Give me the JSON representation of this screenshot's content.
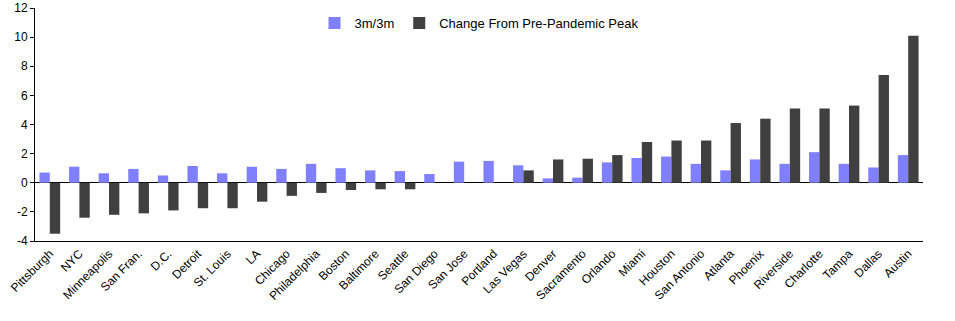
{
  "chart_data": {
    "type": "bar",
    "categories": [
      "Pittsburgh",
      "NYC",
      "Minneapolis",
      "San Fran.",
      "D.C.",
      "Detroit",
      "St. Louis",
      "LA",
      "Chicago",
      "Philadelphia",
      "Boston",
      "Baltimore",
      "Seattle",
      "San Diego",
      "San Jose",
      "Portland",
      "Las Vegas",
      "Denver",
      "Sacramento",
      "Orlando",
      "Miami",
      "Houston",
      "San Antonio",
      "Atlanta",
      "Phoenix",
      "Riverside",
      "Charlotte",
      "Tampa",
      "Dallas",
      "Austin"
    ],
    "series": [
      {
        "name": "3m/3m",
        "color": "#8080ff",
        "values": [
          0.7,
          1.1,
          0.65,
          0.95,
          0.5,
          1.15,
          0.65,
          1.1,
          0.95,
          1.3,
          1.0,
          0.85,
          0.8,
          0.6,
          1.45,
          1.5,
          1.2,
          0.3,
          0.35,
          1.4,
          1.7,
          1.8,
          1.3,
          0.85,
          1.6,
          1.3,
          2.1,
          1.3,
          1.05,
          1.9
        ]
      },
      {
        "name": "Change From Pre-Pandemic Peak",
        "color": "#404040",
        "values": [
          -3.5,
          -2.4,
          -2.2,
          -2.1,
          -1.9,
          -1.75,
          -1.75,
          -1.3,
          -0.9,
          -0.7,
          -0.5,
          -0.45,
          -0.45,
          0,
          0,
          0,
          0.85,
          1.6,
          1.65,
          1.9,
          2.8,
          2.9,
          2.9,
          4.1,
          4.4,
          5.1,
          5.1,
          5.3,
          7.4,
          10.1
        ]
      }
    ],
    "ylim": [
      -4,
      12
    ],
    "yticks": [
      -4,
      -2,
      0,
      2,
      4,
      6,
      8,
      10,
      12
    ],
    "grid": false,
    "legend": "top"
  }
}
